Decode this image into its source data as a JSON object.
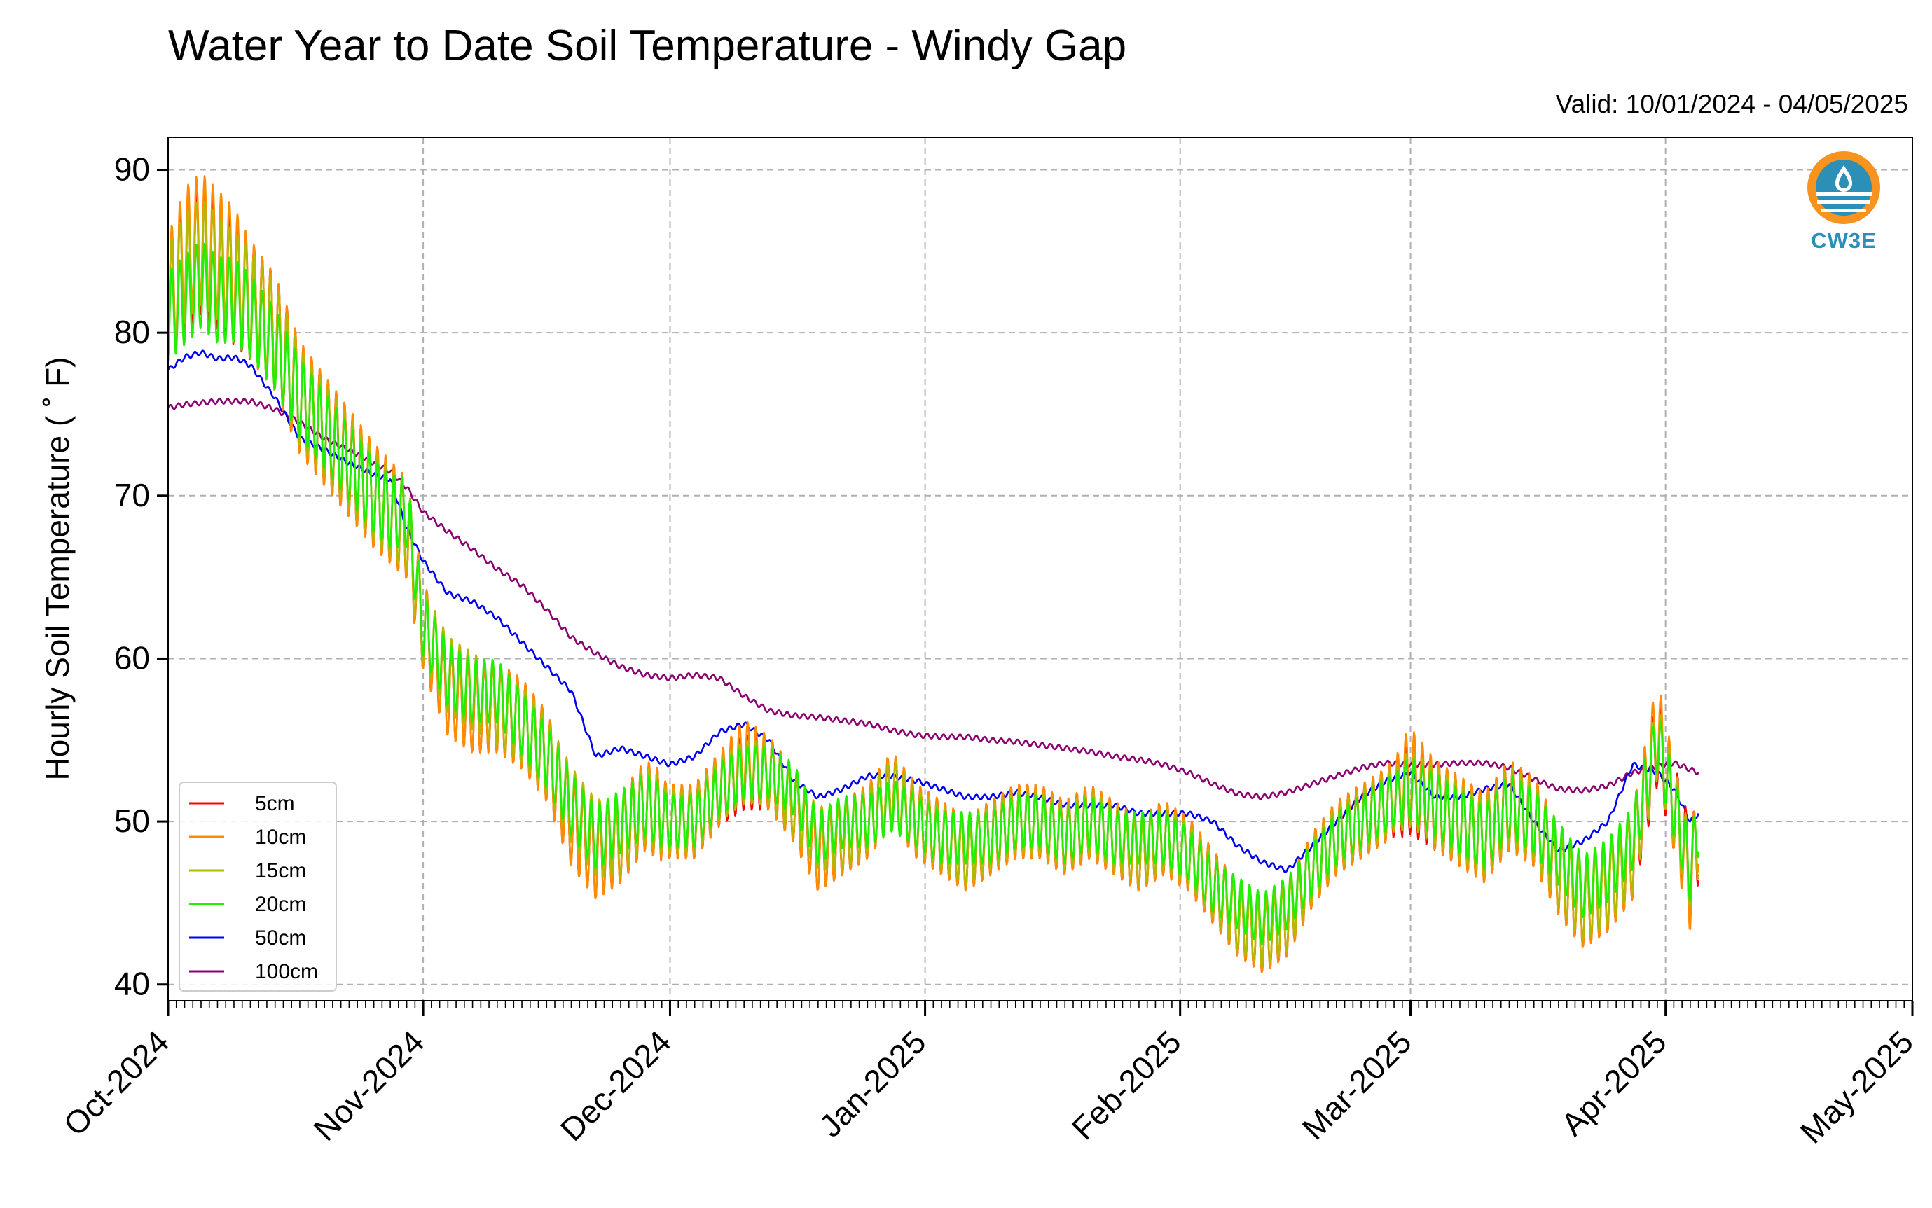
{
  "chart_data": {
    "type": "line",
    "title": "Water Year to Date Soil Temperature - Windy Gap",
    "subtitle": "Valid: 10/01/2024 - 04/05/2025",
    "ylabel": "Hourly Soil Temperature ($^\\circ$F)",
    "ylabel_display": "Hourly Soil Temperature ( ˚ F)",
    "xlabel": "",
    "xlim": [
      "2024-10-01",
      "2025-05-01"
    ],
    "ylim": [
      39,
      92
    ],
    "x_tick_labels": [
      "Oct-2024",
      "Nov-2024",
      "Dec-2024",
      "Jan-2025",
      "Feb-2025",
      "Mar-2025",
      "Apr-2025",
      "May-2025"
    ],
    "y_tick_labels": [
      "40",
      "50",
      "60",
      "70",
      "80",
      "90"
    ],
    "grid": true,
    "legend_position": "lower-left",
    "x": [
      "2024-10-01",
      "2024-10-03",
      "2024-10-05",
      "2024-10-07",
      "2024-10-09",
      "2024-10-11",
      "2024-10-14",
      "2024-10-17",
      "2024-10-20",
      "2024-10-23",
      "2024-10-26",
      "2024-10-28",
      "2024-10-30",
      "2024-11-01",
      "2024-11-04",
      "2024-11-07",
      "2024-11-10",
      "2024-11-13",
      "2024-11-16",
      "2024-11-19",
      "2024-11-22",
      "2024-11-25",
      "2024-11-28",
      "2024-12-01",
      "2024-12-04",
      "2024-12-07",
      "2024-12-10",
      "2024-12-13",
      "2024-12-16",
      "2024-12-19",
      "2024-12-22",
      "2024-12-25",
      "2024-12-28",
      "2024-12-31",
      "2025-01-03",
      "2025-01-06",
      "2025-01-09",
      "2025-01-12",
      "2025-01-15",
      "2025-01-18",
      "2025-01-21",
      "2025-01-24",
      "2025-01-27",
      "2025-01-30",
      "2025-02-02",
      "2025-02-05",
      "2025-02-08",
      "2025-02-11",
      "2025-02-14",
      "2025-02-17",
      "2025-02-20",
      "2025-02-23",
      "2025-02-26",
      "2025-03-01",
      "2025-03-04",
      "2025-03-07",
      "2025-03-10",
      "2025-03-13",
      "2025-03-16",
      "2025-03-19",
      "2025-03-22",
      "2025-03-25",
      "2025-03-28",
      "2025-03-31",
      "2025-04-02",
      "2025-04-04",
      "2025-04-05"
    ],
    "series": [
      {
        "name": "5cm",
        "color": "#ff0000",
        "values": [
          82,
          84,
          85,
          84,
          83,
          82,
          80,
          76,
          74,
          72,
          70,
          69,
          68,
          62,
          58,
          57,
          57,
          56,
          54,
          50,
          48,
          49,
          51,
          50,
          50,
          52,
          53,
          53,
          51,
          48,
          49,
          50,
          52,
          50,
          49,
          48,
          49,
          50,
          50,
          49,
          50,
          49,
          48,
          49,
          48,
          46,
          44,
          43,
          44,
          47,
          49,
          50,
          51,
          52,
          51,
          50,
          49,
          51,
          50,
          47,
          45,
          46,
          48,
          55,
          51,
          47,
          49
        ]
      },
      {
        "name": "10cm",
        "color": "#ff8c00",
        "values": [
          82,
          85,
          86,
          85,
          84,
          82,
          80,
          76,
          74,
          72,
          70,
          69,
          68,
          62,
          58,
          57,
          57,
          56,
          54,
          50,
          48,
          49,
          51,
          50,
          50,
          52,
          54,
          53,
          51,
          48,
          49,
          50,
          52,
          50,
          49,
          48,
          49,
          50,
          50,
          49,
          50,
          49,
          48,
          49,
          48,
          46,
          44,
          43,
          44,
          47,
          49,
          50,
          51,
          53,
          51,
          50,
          49,
          51,
          50,
          47,
          45,
          46,
          48,
          56,
          51,
          46,
          50
        ]
      },
      {
        "name": "15cm",
        "color": "#b5b800",
        "values": [
          82,
          84,
          85,
          84,
          83,
          82,
          80,
          76,
          74,
          72,
          70,
          69,
          68,
          62,
          59,
          58,
          57,
          56,
          54,
          51,
          49,
          49,
          51,
          50,
          50,
          52,
          53,
          53,
          51,
          49,
          49,
          50,
          52,
          50,
          49,
          48,
          49,
          50,
          50,
          49,
          50,
          49,
          48,
          49,
          48,
          46,
          44,
          43,
          44,
          47,
          49,
          50,
          51,
          52,
          51,
          50,
          49,
          51,
          50,
          47,
          45,
          46,
          48,
          55,
          51,
          47,
          49
        ]
      },
      {
        "name": "20cm",
        "color": "#22ee00",
        "values": [
          81,
          82,
          83,
          82,
          82,
          81,
          79,
          76,
          74,
          72,
          70,
          69,
          69,
          62,
          59,
          58,
          58,
          56,
          54,
          51,
          49,
          50,
          51,
          50,
          50,
          52,
          53,
          53,
          52,
          49,
          50,
          50,
          51,
          50,
          49,
          49,
          49,
          50,
          50,
          49,
          50,
          49,
          49,
          49,
          48,
          46,
          45,
          44,
          45,
          47,
          49,
          50,
          51,
          52,
          51,
          50,
          49,
          51,
          50,
          48,
          46,
          47,
          49,
          55,
          51,
          47,
          50
        ]
      },
      {
        "name": "50cm",
        "color": "#0000ee",
        "values": [
          77.7,
          78.5,
          78.8,
          78.4,
          78.5,
          78.0,
          76.0,
          73.5,
          72.8,
          72.0,
          71.3,
          71.0,
          68.0,
          66.0,
          64.0,
          63.5,
          62.5,
          61.0,
          59.5,
          58.0,
          54.0,
          54.5,
          54.0,
          53.5,
          54.0,
          55.5,
          56.0,
          55.0,
          52.5,
          51.5,
          52.0,
          52.8,
          52.8,
          52.5,
          52.0,
          51.5,
          51.5,
          51.8,
          51.5,
          51.0,
          51.0,
          51.0,
          50.5,
          50.5,
          50.5,
          50.0,
          48.5,
          47.5,
          47.0,
          48.5,
          50.0,
          51.5,
          52.5,
          53.0,
          51.5,
          51.5,
          52.0,
          52.3,
          50.0,
          48.2,
          48.8,
          50.0,
          53.5,
          53.0,
          52.0,
          50.0,
          50.5
        ]
      },
      {
        "name": "100cm",
        "color": "#8b0070",
        "values": [
          75.4,
          75.6,
          75.7,
          75.8,
          75.8,
          75.8,
          75.3,
          74.5,
          73.5,
          72.8,
          72.0,
          71.5,
          70.5,
          69.0,
          67.8,
          66.7,
          65.5,
          64.5,
          63.0,
          61.3,
          60.3,
          59.5,
          59.0,
          58.8,
          59.0,
          58.8,
          57.7,
          56.8,
          56.5,
          56.4,
          56.2,
          56.0,
          55.6,
          55.3,
          55.2,
          55.2,
          55.0,
          54.9,
          54.7,
          54.5,
          54.3,
          54.0,
          53.8,
          53.5,
          53.0,
          52.3,
          51.7,
          51.5,
          51.8,
          52.3,
          52.8,
          53.3,
          53.6,
          53.5,
          53.5,
          53.6,
          53.6,
          53.3,
          52.6,
          52.0,
          51.9,
          52.2,
          53.0,
          53.4,
          53.6,
          53.2,
          53.0
        ]
      }
    ]
  },
  "logo": {
    "text": "CW3E",
    "accent": "#f7931e",
    "blue": "#2b8fb8"
  }
}
